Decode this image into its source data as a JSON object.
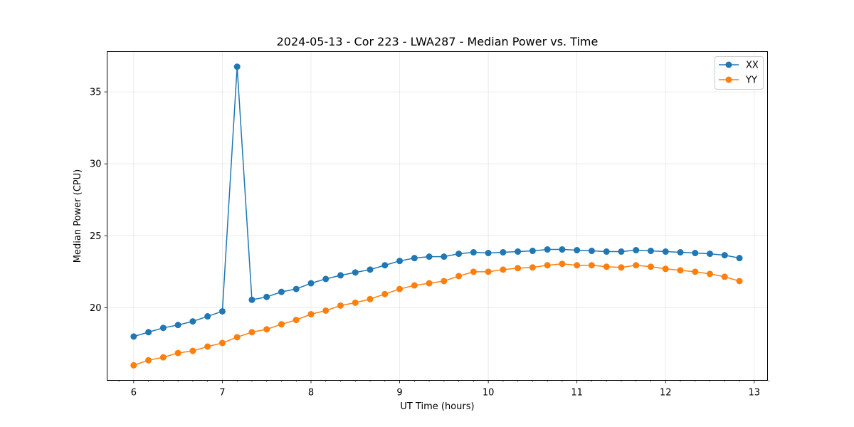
{
  "chart_data": {
    "type": "line",
    "title": "2024-05-13 - Cor 223 - LWA287 - Median Power vs. Time",
    "xlabel": "UT Time (hours)",
    "ylabel": "Median Power (CPU)",
    "xlim": [
      5.7,
      13.15
    ],
    "ylim": [
      14.95,
      37.8
    ],
    "xticks": [
      6,
      7,
      8,
      9,
      10,
      11,
      12,
      13
    ],
    "xticks_minor": [
      5.8333,
      6.1667,
      6.3333,
      6.5,
      6.6667,
      6.8333,
      7.1667,
      7.3333,
      7.5,
      7.6667,
      7.8333,
      8.1667,
      8.3333,
      8.5,
      8.6667,
      8.8333,
      9.1667,
      9.3333,
      9.5,
      9.6667,
      9.8333,
      10.1667,
      10.3333,
      10.5,
      10.6667,
      10.8333,
      11.1667,
      11.3333,
      11.5,
      11.6667,
      11.8333,
      12.1667,
      12.3333,
      12.5,
      12.6667,
      12.8333,
      13.1667
    ],
    "yticks": [
      20,
      25,
      30,
      35
    ],
    "grid": true,
    "legend_position": "top-right",
    "x": [
      6.0,
      6.1667,
      6.3333,
      6.5,
      6.6667,
      6.8333,
      7.0,
      7.1667,
      7.3333,
      7.5,
      7.6667,
      7.8333,
      8.0,
      8.1667,
      8.3333,
      8.5,
      8.6667,
      8.8333,
      9.0,
      9.1667,
      9.3333,
      9.5,
      9.6667,
      9.8333,
      10.0,
      10.1667,
      10.3333,
      10.5,
      10.6667,
      10.8333,
      11.0,
      11.1667,
      11.3333,
      11.5,
      11.6667,
      11.8333,
      12.0,
      12.1667,
      12.3333,
      12.5,
      12.6667,
      12.8333
    ],
    "series": [
      {
        "name": "XX",
        "color": "#1f77b4",
        "values": [
          18.0,
          18.3,
          18.6,
          18.8,
          19.05,
          19.4,
          19.75,
          36.75,
          20.55,
          20.75,
          21.1,
          21.3,
          21.7,
          22.0,
          22.25,
          22.45,
          22.65,
          22.95,
          23.25,
          23.45,
          23.55,
          23.55,
          23.75,
          23.85,
          23.8,
          23.85,
          23.9,
          23.95,
          24.05,
          24.05,
          24.0,
          23.95,
          23.9,
          23.9,
          24.0,
          23.95,
          23.9,
          23.85,
          23.8,
          23.75,
          23.65,
          23.45
        ]
      },
      {
        "name": "YY",
        "color": "#ff7f0e",
        "values": [
          16.0,
          16.35,
          16.55,
          16.85,
          17.0,
          17.3,
          17.55,
          17.95,
          18.3,
          18.5,
          18.85,
          19.15,
          19.55,
          19.8,
          20.15,
          20.35,
          20.6,
          20.95,
          21.3,
          21.55,
          21.7,
          21.85,
          22.2,
          22.5,
          22.5,
          22.65,
          22.75,
          22.8,
          22.95,
          23.05,
          22.95,
          22.95,
          22.85,
          22.8,
          22.95,
          22.85,
          22.7,
          22.6,
          22.5,
          22.35,
          22.15,
          21.85
        ]
      }
    ]
  }
}
